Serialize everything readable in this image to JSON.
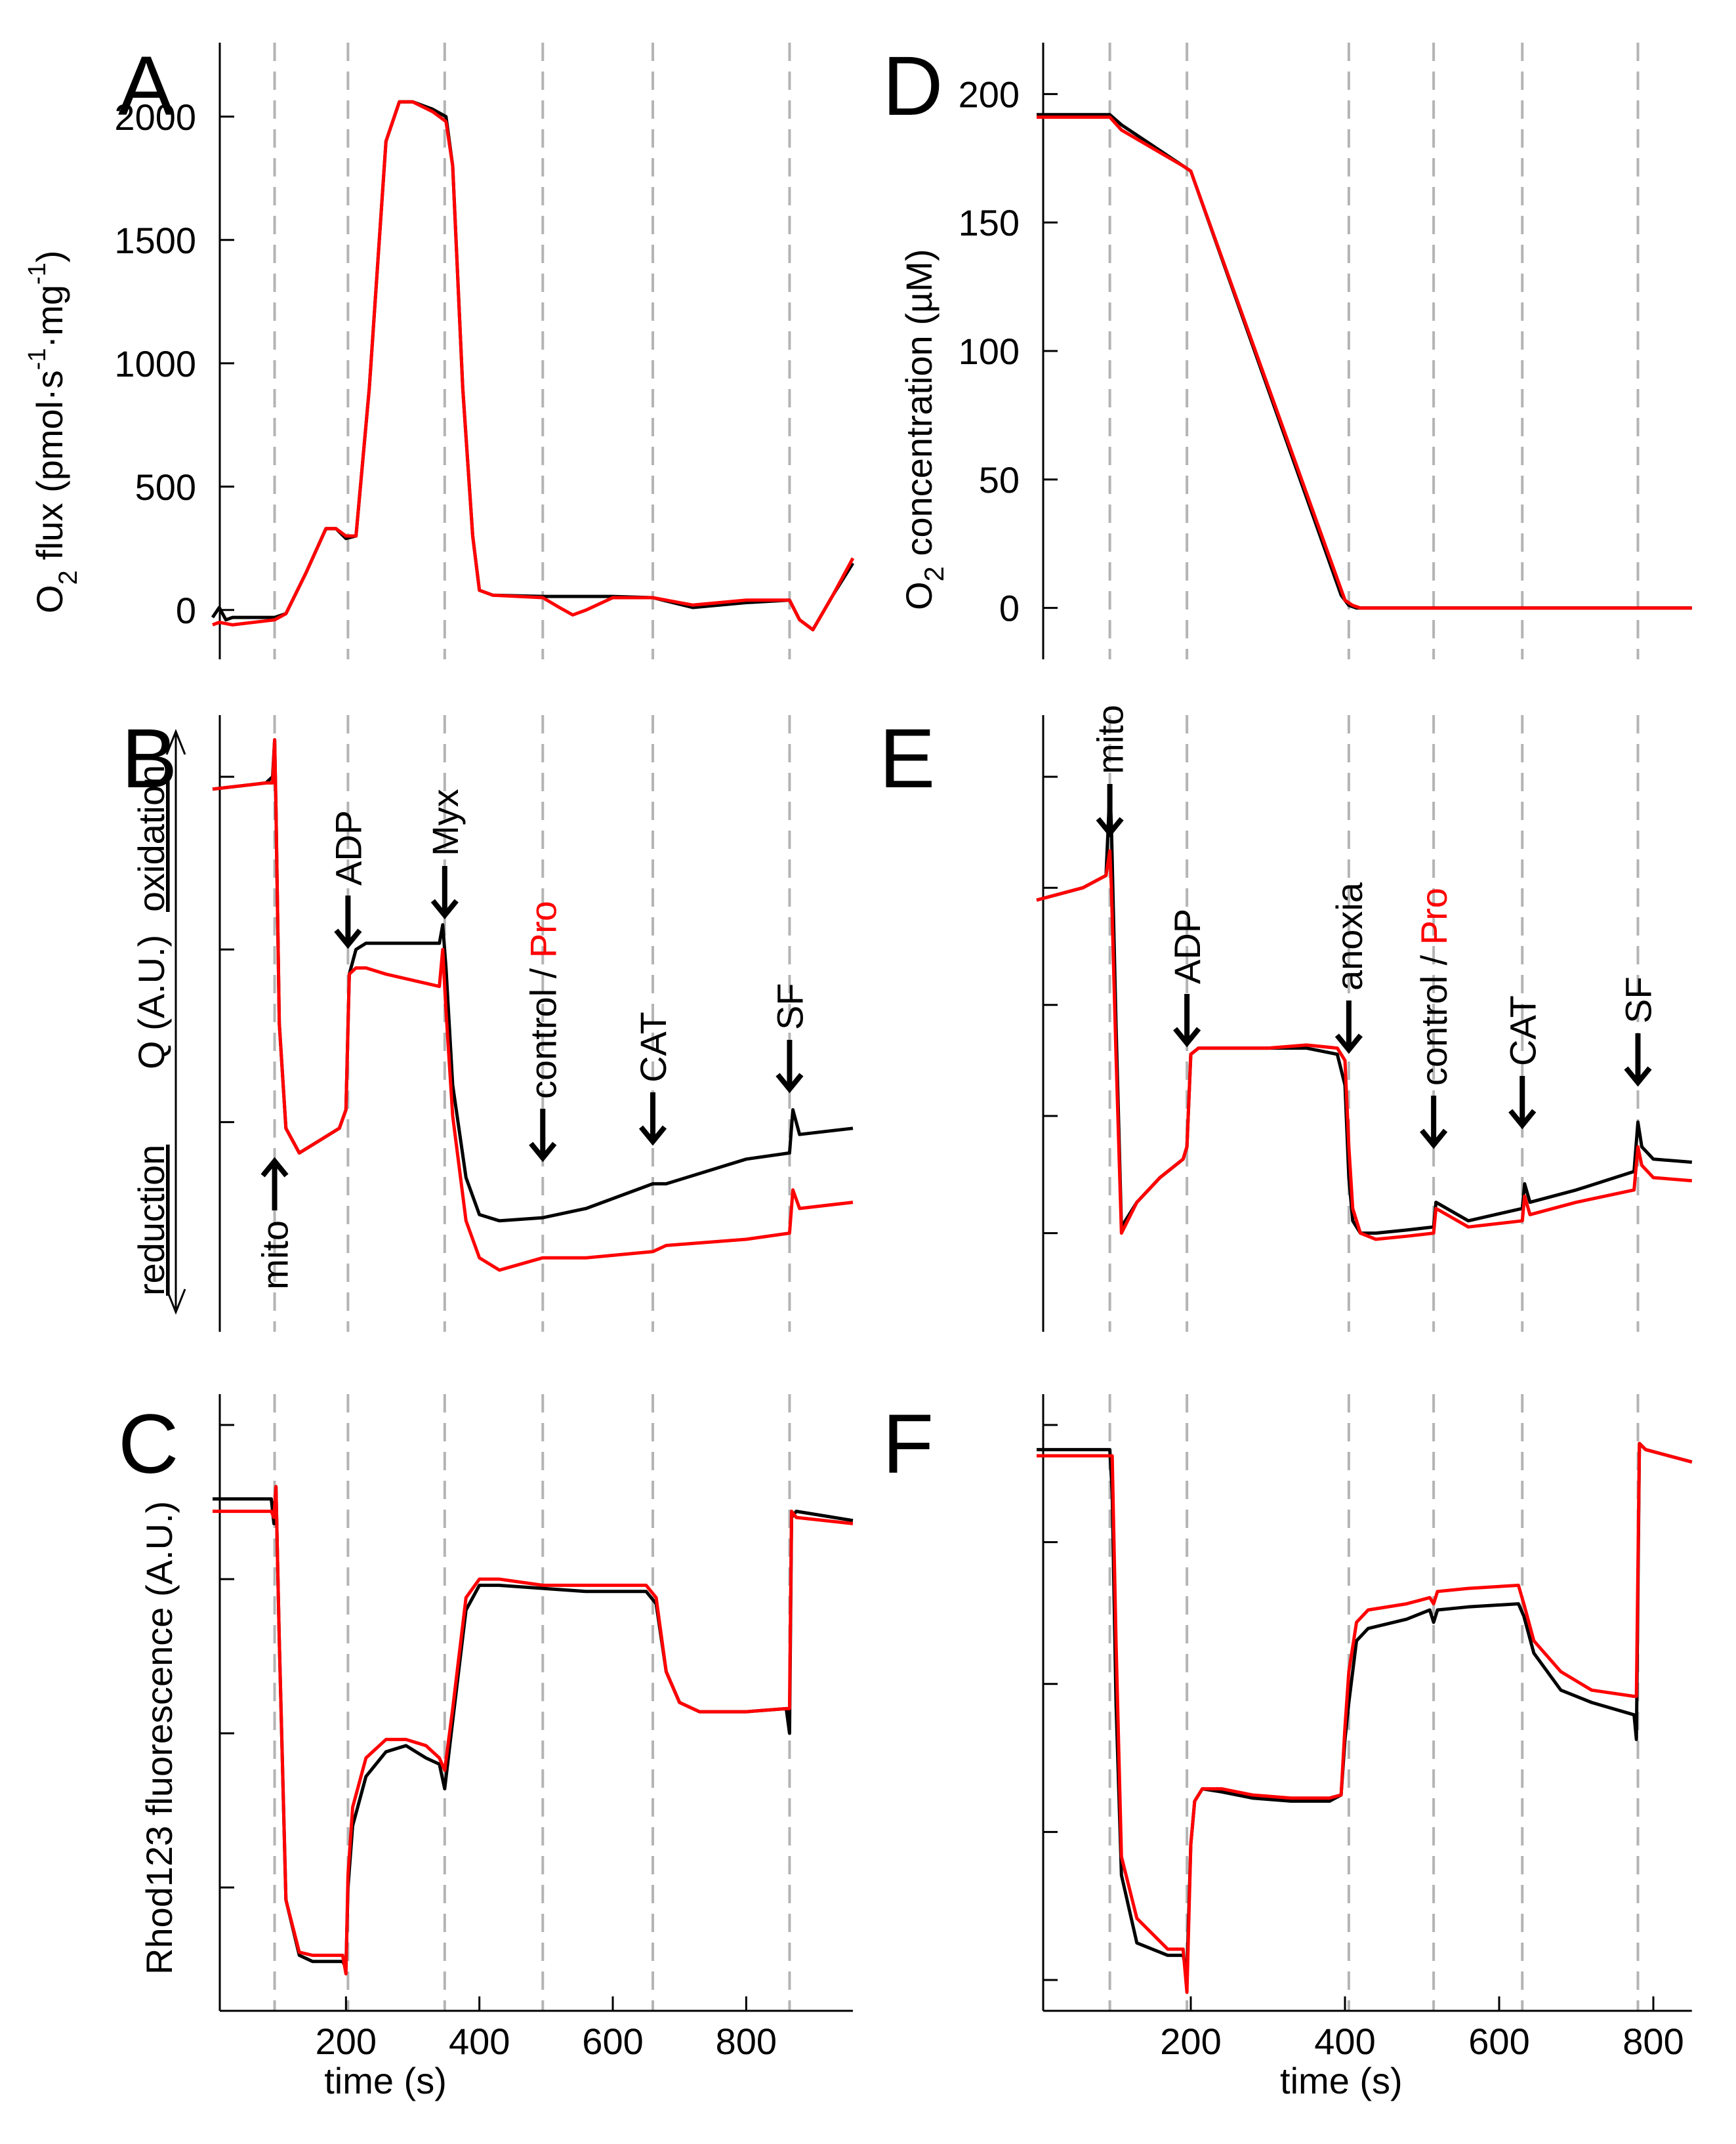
{
  "legend_series": {
    "control": {
      "label": "control",
      "color": "#000000"
    },
    "pro": {
      "label": "Pro",
      "color": "#ff0000"
    }
  },
  "vline_color": "#b4b4b4",
  "chart_data": [
    {
      "panel": "A",
      "type": "line",
      "ylabel": "O2 flux (pmol·s⁻¹·mg⁻¹)",
      "xlabel": "",
      "xlim": [
        0,
        960
      ],
      "ylim": [
        -200,
        2300
      ],
      "yticks": [
        0,
        500,
        1000,
        1500,
        2000
      ],
      "xticks": [],
      "event_lines_x": [
        93,
        203,
        348,
        495,
        660,
        865
      ],
      "series": [
        {
          "key": "control",
          "color": "#000000",
          "x": [
            0,
            10,
            20,
            30,
            93,
            110,
            140,
            170,
            185,
            200,
            215,
            235,
            260,
            280,
            300,
            330,
            350,
            360,
            375,
            390,
            400,
            420,
            495,
            540,
            560,
            600,
            660,
            720,
            800,
            865,
            880,
            900,
            930,
            960
          ],
          "y": [
            -30,
            10,
            -40,
            -30,
            -30,
            -15,
            150,
            330,
            330,
            290,
            300,
            900,
            1900,
            2060,
            2060,
            2030,
            2000,
            1800,
            900,
            300,
            80,
            60,
            55,
            55,
            55,
            55,
            50,
            10,
            30,
            40,
            -40,
            -80,
            60,
            190
          ]
        },
        {
          "key": "pro",
          "color": "#ff0000",
          "x": [
            0,
            10,
            30,
            93,
            110,
            140,
            170,
            185,
            200,
            215,
            235,
            260,
            280,
            300,
            330,
            350,
            360,
            375,
            390,
            400,
            420,
            495,
            520,
            540,
            560,
            600,
            660,
            720,
            800,
            865,
            880,
            900,
            930,
            960
          ],
          "y": [
            -60,
            -50,
            -60,
            -40,
            -15,
            150,
            330,
            330,
            300,
            300,
            900,
            1900,
            2060,
            2060,
            2020,
            1980,
            1800,
            900,
            300,
            80,
            60,
            50,
            10,
            -20,
            0,
            50,
            50,
            20,
            40,
            40,
            -40,
            -80,
            60,
            210
          ]
        }
      ]
    },
    {
      "panel": "B",
      "type": "line",
      "ylabel_left": "reduction",
      "ylabel_mid": "Q (A.U.)",
      "ylabel_right": "oxidation",
      "xlim": [
        0,
        960
      ],
      "ylim": [
        0,
        100
      ],
      "yticks": [
        90,
        62,
        34
      ],
      "xticks": [],
      "event_lines_x": [
        93,
        203,
        348,
        495,
        660,
        865
      ],
      "annotations": [
        {
          "text": "mito",
          "x": 93,
          "direction": "up"
        },
        {
          "text": "ADP",
          "x": 203,
          "direction": "down"
        },
        {
          "text": "Myx",
          "x": 348,
          "direction": "down"
        },
        {
          "text": "control /",
          "text_red": "Pro",
          "x": 495,
          "direction": "down"
        },
        {
          "text": "CAT",
          "x": 660,
          "direction": "down"
        },
        {
          "text": "SF",
          "x": 865,
          "direction": "down"
        }
      ],
      "series": [
        {
          "key": "control",
          "color": "#000000",
          "x": [
            0,
            80,
            90,
            93,
            95,
            100,
            110,
            130,
            160,
            190,
            200,
            205,
            215,
            230,
            260,
            300,
            340,
            345,
            350,
            360,
            380,
            400,
            430,
            495,
            560,
            660,
            680,
            800,
            865,
            870,
            880,
            960
          ],
          "y": [
            88,
            89,
            90,
            96,
            85,
            50,
            33,
            29,
            31,
            33,
            36,
            58,
            62,
            63,
            63,
            63,
            63,
            66,
            59,
            40,
            25,
            19,
            18,
            18.5,
            20,
            24,
            24,
            28,
            29,
            36,
            32,
            33
          ]
        },
        {
          "key": "pro",
          "color": "#ff0000",
          "x": [
            0,
            80,
            90,
            93,
            95,
            100,
            110,
            130,
            160,
            190,
            200,
            205,
            215,
            230,
            260,
            300,
            340,
            345,
            350,
            360,
            380,
            400,
            430,
            495,
            560,
            660,
            680,
            800,
            865,
            870,
            880,
            960
          ],
          "y": [
            88,
            89,
            89,
            96,
            85,
            50,
            33,
            29,
            31,
            33,
            36,
            58,
            59,
            59,
            58,
            57,
            56,
            62,
            52,
            35,
            18,
            12,
            10,
            12,
            12,
            13,
            14,
            15,
            16,
            23,
            20,
            21
          ]
        }
      ]
    },
    {
      "panel": "C",
      "type": "line",
      "ylabel": "Rhod123 fluorescence (A.U.)",
      "xlabel": "time (s)",
      "xlim": [
        0,
        960
      ],
      "ylim": [
        0,
        100
      ],
      "yticks": [
        95,
        70,
        45,
        20
      ],
      "xticks": [
        200,
        400,
        600,
        800
      ],
      "event_lines_x": [
        93,
        203,
        348,
        495,
        660,
        865
      ],
      "series": [
        {
          "key": "control",
          "color": "#000000",
          "x": [
            0,
            88,
            92,
            95,
            100,
            110,
            130,
            150,
            180,
            195,
            200,
            203,
            210,
            230,
            260,
            290,
            320,
            340,
            348,
            360,
            380,
            400,
            430,
            495,
            560,
            650,
            665,
            680,
            700,
            730,
            800,
            860,
            865,
            868,
            875,
            960
          ],
          "y": [
            83,
            83,
            79,
            85,
            60,
            18,
            9,
            8,
            8,
            8,
            7,
            20,
            30,
            38,
            42,
            43,
            41,
            40,
            36,
            47,
            65,
            69,
            69,
            68.5,
            68,
            68,
            66,
            55,
            50,
            48.5,
            48.5,
            49,
            45,
            80,
            81,
            79.5
          ]
        },
        {
          "key": "pro",
          "color": "#ff0000",
          "x": [
            0,
            88,
            92,
            95,
            100,
            110,
            130,
            150,
            180,
            195,
            200,
            203,
            210,
            230,
            260,
            290,
            320,
            340,
            348,
            360,
            380,
            400,
            430,
            495,
            560,
            650,
            665,
            680,
            700,
            730,
            800,
            860,
            865,
            868,
            875,
            960
          ],
          "y": [
            81,
            81,
            80,
            85,
            60,
            18,
            9.5,
            9,
            9,
            9,
            6,
            22,
            33,
            41,
            44,
            44,
            43,
            41,
            39,
            49,
            67,
            70,
            70,
            69,
            69,
            69,
            67,
            55,
            50,
            48.5,
            48.5,
            49,
            49,
            81,
            80,
            79
          ]
        }
      ]
    },
    {
      "panel": "D",
      "type": "line",
      "ylabel": "O2 concentration (µM)",
      "xlabel": "",
      "xlim": [
        0,
        850
      ],
      "ylim": [
        -20,
        220
      ],
      "yticks": [
        0,
        50,
        100,
        150,
        200
      ],
      "xticks": [],
      "event_lines_x": [
        95,
        195,
        405,
        515,
        630,
        780
      ],
      "series": [
        {
          "key": "control",
          "color": "#000000",
          "x": [
            0,
            95,
            110,
            190,
            200,
            395,
            405,
            415,
            850
          ],
          "y": [
            192,
            192,
            188,
            172,
            170,
            5,
            1,
            0,
            0
          ]
        },
        {
          "key": "pro",
          "color": "#ff0000",
          "x": [
            0,
            95,
            110,
            190,
            200,
            400,
            410,
            420,
            850
          ],
          "y": [
            191,
            191,
            186,
            172,
            170,
            3,
            1,
            0,
            0
          ]
        }
      ]
    },
    {
      "panel": "E",
      "type": "line",
      "xlim": [
        0,
        850
      ],
      "ylim": [
        0,
        100
      ],
      "yticks": [
        90,
        72,
        53,
        35,
        16
      ],
      "xticks": [],
      "event_lines_x": [
        95,
        195,
        405,
        515,
        630,
        780
      ],
      "annotations": [
        {
          "text": "mito",
          "x": 95,
          "direction": "down"
        },
        {
          "text": "ADP",
          "x": 195,
          "direction": "down"
        },
        {
          "text": "anoxia",
          "x": 405,
          "direction": "down"
        },
        {
          "text": "control /",
          "text_red": "Pro",
          "x": 515,
          "direction": "down"
        },
        {
          "text": "CAT",
          "x": 630,
          "direction": "down"
        },
        {
          "text": "SF",
          "x": 780,
          "direction": "down"
        }
      ],
      "series": [
        {
          "key": "control",
          "color": "#000000",
          "x": [
            0,
            60,
            90,
            95,
            97,
            103,
            110,
            130,
            160,
            190,
            195,
            200,
            210,
            250,
            300,
            350,
            390,
            400,
            405,
            410,
            420,
            440,
            480,
            515,
            518,
            560,
            630,
            633,
            640,
            700,
            775,
            780,
            785,
            800,
            850
          ],
          "y": [
            70,
            72,
            74,
            88,
            82,
            50,
            17,
            21,
            25,
            28,
            30,
            45,
            46,
            46,
            46,
            46,
            45,
            40,
            25,
            18,
            16,
            16,
            16.5,
            17,
            21,
            18,
            20,
            24,
            21,
            23,
            26,
            34,
            30,
            28,
            27.5
          ]
        },
        {
          "key": "pro",
          "color": "#ff0000",
          "x": [
            0,
            60,
            90,
            95,
            97,
            103,
            110,
            130,
            160,
            190,
            195,
            200,
            210,
            250,
            300,
            350,
            390,
            400,
            405,
            410,
            420,
            440,
            480,
            515,
            518,
            560,
            630,
            633,
            640,
            700,
            775,
            780,
            785,
            800,
            850
          ],
          "y": [
            70,
            72,
            74,
            78,
            72,
            45,
            16,
            21,
            25,
            28,
            30,
            45,
            46,
            46,
            46,
            46.5,
            46,
            44,
            30,
            20,
            16,
            15,
            15.5,
            16,
            20,
            17,
            18,
            22,
            19,
            21,
            23,
            30,
            27,
            25,
            24.5
          ]
        }
      ]
    },
    {
      "panel": "F",
      "type": "line",
      "xlabel": "time (s)",
      "xlim": [
        0,
        850
      ],
      "ylim": [
        0,
        100
      ],
      "yticks": [
        95,
        76,
        53,
        29,
        5
      ],
      "xticks": [
        200,
        400,
        600,
        800
      ],
      "event_lines_x": [
        95,
        195,
        405,
        515,
        630,
        780
      ],
      "series": [
        {
          "key": "control",
          "color": "#000000",
          "x": [
            0,
            90,
            95,
            98,
            103,
            110,
            130,
            170,
            190,
            195,
            200,
            205,
            215,
            240,
            280,
            330,
            380,
            395,
            400,
            405,
            415,
            430,
            480,
            510,
            515,
            520,
            560,
            625,
            632,
            645,
            680,
            720,
            775,
            778,
            782,
            790,
            850
          ],
          "y": [
            91,
            91,
            91,
            84,
            50,
            22,
            11,
            9,
            9,
            6,
            27,
            34,
            36,
            35.5,
            34.5,
            34,
            34,
            35,
            44,
            50,
            60,
            62,
            63.5,
            65,
            63,
            65,
            65.5,
            66,
            64,
            58,
            52,
            50,
            48,
            44,
            92,
            91,
            89
          ]
        },
        {
          "key": "pro",
          "color": "#ff0000",
          "x": [
            0,
            90,
            95,
            98,
            103,
            110,
            130,
            170,
            190,
            195,
            200,
            205,
            215,
            240,
            280,
            330,
            380,
            395,
            400,
            405,
            415,
            430,
            480,
            510,
            515,
            520,
            560,
            625,
            632,
            645,
            680,
            720,
            775,
            778,
            782,
            790,
            850
          ],
          "y": [
            90,
            90,
            90,
            90,
            60,
            25,
            15,
            10,
            10,
            3,
            27,
            34,
            36,
            36,
            35,
            34.5,
            34.5,
            35,
            46,
            55,
            63,
            65,
            66,
            67,
            66,
            68,
            68.5,
            69,
            66,
            60,
            55,
            52,
            51,
            51,
            92,
            91,
            89
          ]
        }
      ]
    }
  ],
  "panel_letters": [
    "A",
    "B",
    "C",
    "D",
    "E",
    "F"
  ]
}
